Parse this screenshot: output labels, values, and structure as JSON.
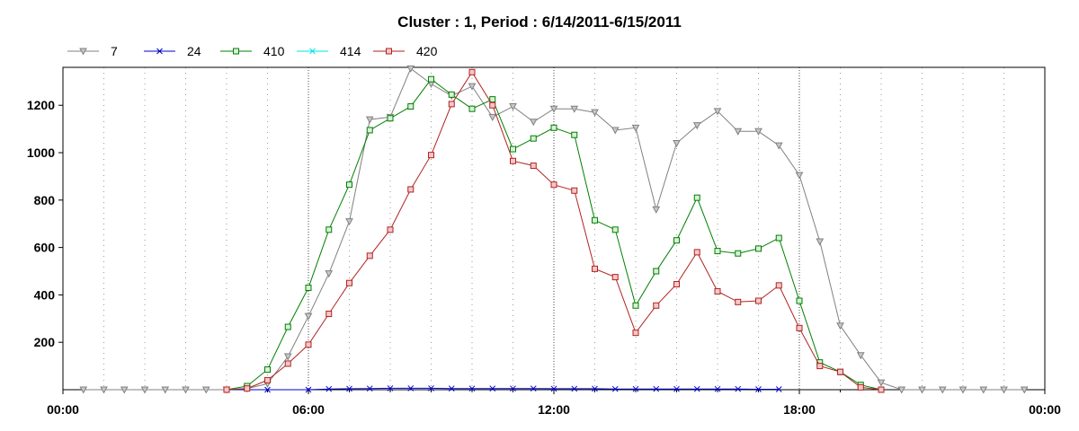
{
  "chart_data": {
    "type": "line",
    "title": "Cluster : 1, Period : 6/14/2011-6/15/2011",
    "xlabel": "",
    "ylabel": "",
    "x_ticks": [
      "00:00",
      "06:00",
      "12:00",
      "18:00",
      "00:00"
    ],
    "y_ticks": [
      "200",
      "400",
      "600",
      "800",
      "1000",
      "1200"
    ],
    "xlim": [
      0,
      24
    ],
    "ylim": [
      0,
      1360
    ],
    "grid": true,
    "legend_position": "top-left",
    "series": [
      {
        "name": "7",
        "color": "#808080",
        "marker": "triangle-down",
        "x": [
          0.5,
          1,
          1.5,
          2,
          2.5,
          3,
          3.5,
          4,
          4.5,
          5,
          5.5,
          6,
          6.5,
          7,
          7.5,
          8,
          8.5,
          9,
          9.5,
          10,
          10.5,
          11,
          11.5,
          12,
          12.5,
          13,
          13.5,
          14,
          14.5,
          15,
          15.5,
          16,
          16.5,
          17,
          17.5,
          18,
          18.5,
          19,
          19.5,
          20,
          20.5,
          21,
          21.5,
          22,
          22.5,
          23,
          23.5
        ],
        "y": [
          0,
          0,
          0,
          0,
          0,
          0,
          0,
          0,
          5,
          25,
          140,
          310,
          490,
          710,
          1140,
          1150,
          1355,
          1290,
          1240,
          1280,
          1150,
          1195,
          1130,
          1185,
          1185,
          1170,
          1095,
          1105,
          760,
          1040,
          1115,
          1175,
          1090,
          1090,
          1030,
          905,
          625,
          270,
          145,
          30,
          0,
          0,
          0,
          0,
          0,
          0,
          0
        ]
      },
      {
        "name": "24",
        "color": "#0000cc",
        "marker": "x",
        "x": [
          4,
          5,
          6,
          6.5,
          7,
          7.5,
          8,
          8.5,
          9,
          9.5,
          10,
          10.5,
          11,
          11.5,
          12,
          12.5,
          13,
          13.5,
          14,
          14.5,
          15,
          15.5,
          16,
          16.5,
          17,
          17.5
        ],
        "y": [
          0,
          0,
          0,
          3,
          4,
          5,
          6,
          6,
          6,
          5,
          5,
          5,
          5,
          5,
          4,
          4,
          4,
          3,
          3,
          3,
          3,
          3,
          3,
          3,
          2,
          2
        ]
      },
      {
        "name": "410",
        "color": "#008000",
        "marker": "square",
        "x": [
          4,
          4.5,
          5,
          5.5,
          6,
          6.5,
          7,
          7.5,
          8,
          8.5,
          9,
          9.5,
          10,
          10.5,
          11,
          11.5,
          12,
          12.5,
          13,
          13.5,
          14,
          14.5,
          15,
          15.5,
          16,
          16.5,
          17,
          17.5,
          18,
          18.5,
          19,
          19.5,
          20
        ],
        "y": [
          0,
          15,
          85,
          265,
          430,
          675,
          865,
          1095,
          1145,
          1195,
          1310,
          1245,
          1185,
          1225,
          1015,
          1060,
          1105,
          1075,
          715,
          675,
          355,
          500,
          630,
          810,
          585,
          575,
          595,
          640,
          375,
          115,
          75,
          20,
          0
        ]
      },
      {
        "name": "414",
        "color": "#00e5e5",
        "marker": "x",
        "x": [],
        "y": []
      },
      {
        "name": "420",
        "color": "#b22222",
        "marker": "square",
        "x": [
          4,
          4.5,
          5,
          5.5,
          6,
          6.5,
          7,
          7.5,
          8,
          8.5,
          9,
          9.5,
          10,
          10.5,
          11,
          11.5,
          12,
          12.5,
          13,
          13.5,
          14,
          14.5,
          15,
          15.5,
          16,
          16.5,
          17,
          17.5,
          18,
          18.5,
          19,
          19.5,
          20
        ],
        "y": [
          0,
          5,
          40,
          110,
          190,
          320,
          450,
          565,
          675,
          845,
          990,
          1205,
          1340,
          1200,
          965,
          945,
          865,
          840,
          510,
          475,
          240,
          355,
          445,
          580,
          415,
          370,
          375,
          440,
          260,
          100,
          75,
          10,
          0
        ]
      }
    ]
  }
}
